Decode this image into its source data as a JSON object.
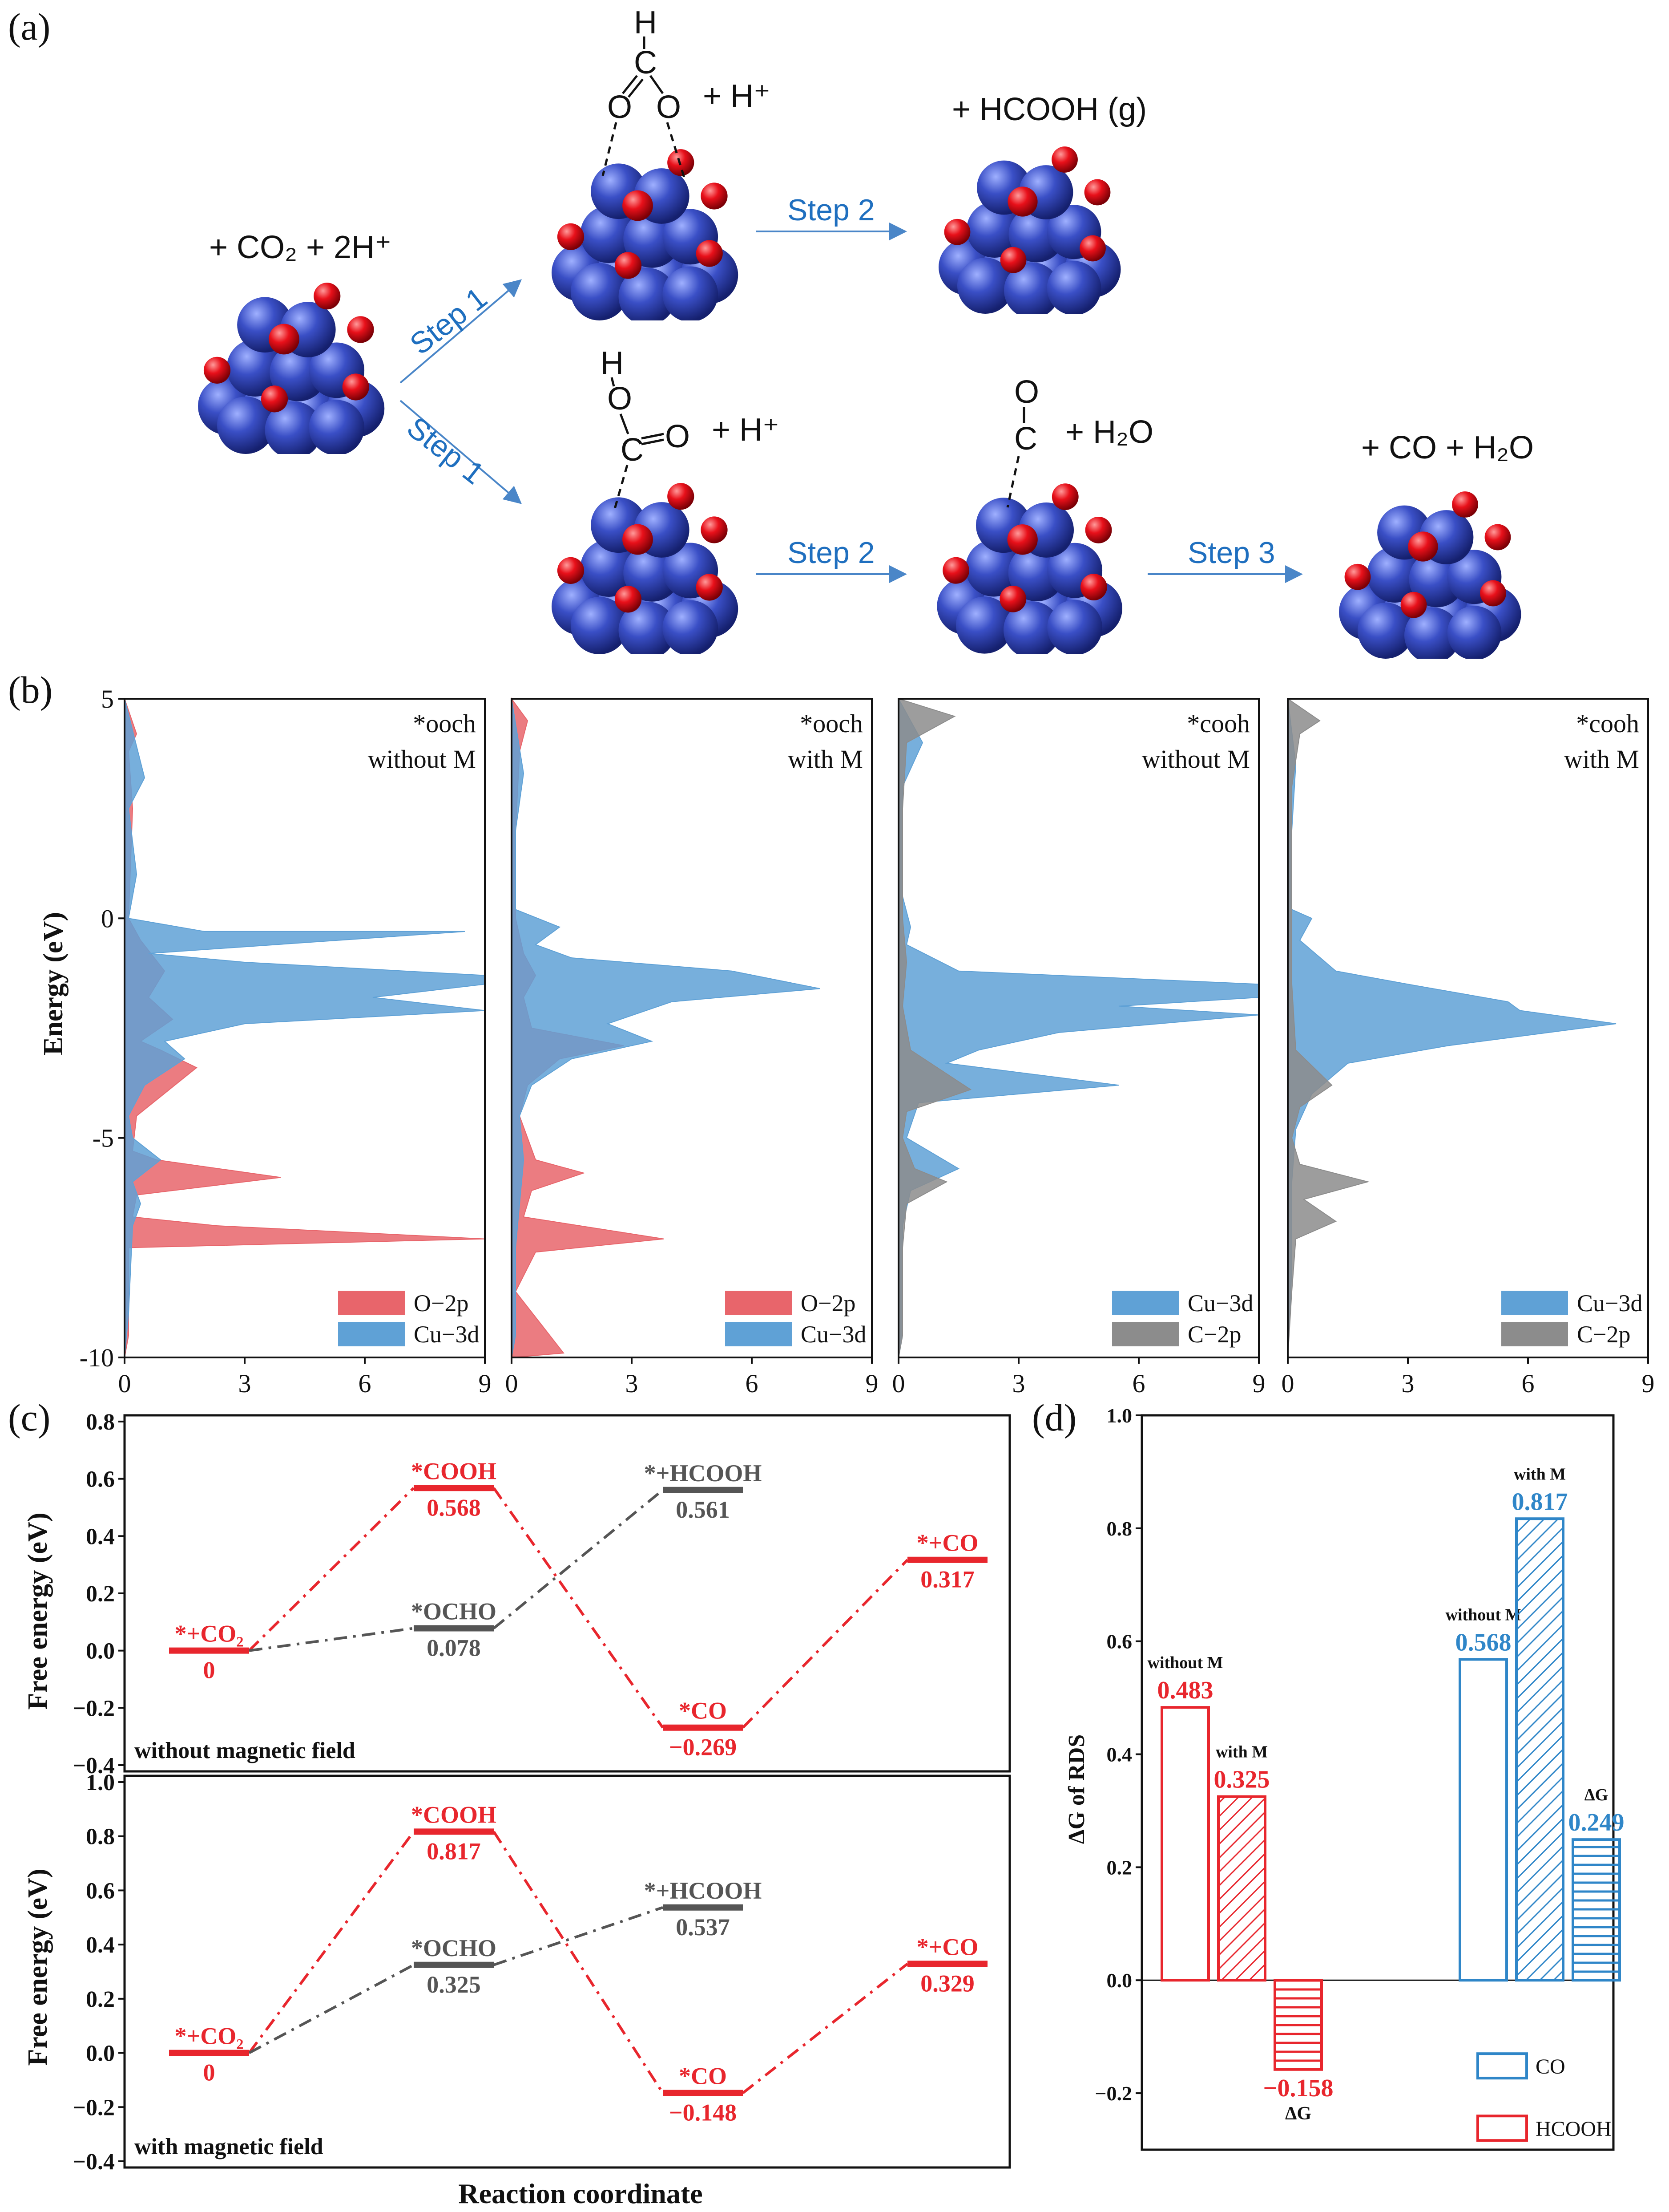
{
  "figure": {
    "panel_labels": [
      "(a)",
      "(b)",
      "(c)",
      "(d)"
    ]
  },
  "panel_a": {
    "initial_label": "+ CO₂ + 2H⁺",
    "top_branch": {
      "step1": "Step 1",
      "intermediate_label": "+ H⁺",
      "step2": "Step 2",
      "product_label": "+ HCOOH (g)",
      "atoms": [
        "H",
        "C",
        "O",
        "O"
      ]
    },
    "bottom_branch": {
      "step1": "Step 1",
      "intermediate1_label": "+ H⁺",
      "step2": "Step 2",
      "intermediate2_label": "+ H₂O",
      "step3": "Step 3",
      "product_label": "+ CO + H₂O",
      "atoms_cooh": [
        "H",
        "O",
        "C",
        "O"
      ],
      "atoms_co": [
        "O",
        "C"
      ]
    },
    "colors": {
      "cu": "#3a4fc6",
      "o": "#e8101a",
      "arrow": "#4a86c8",
      "step_text": "#1f6fbf"
    }
  },
  "chart_data": [
    {
      "type": "area",
      "id": "b1",
      "title": "*ooch without M",
      "title_line1": "*ooch",
      "title_line2": "without M",
      "ylabel": "Energy (eV)",
      "xlim": [
        0,
        9
      ],
      "ylim": [
        -10,
        5
      ],
      "x_ticks": [
        0,
        3,
        6,
        9
      ],
      "y_ticks": [
        5,
        0,
        -5,
        -10
      ],
      "series": [
        {
          "name": "O−2p",
          "color": "#e8656b",
          "points": [
            [
              0,
              5
            ],
            [
              0.3,
              4.2
            ],
            [
              0.1,
              3.8
            ],
            [
              0.2,
              2.5
            ],
            [
              0.1,
              0
            ],
            [
              0.4,
              -0.5
            ],
            [
              1.0,
              -1.2
            ],
            [
              0.6,
              -1.8
            ],
            [
              1.2,
              -2.3
            ],
            [
              0.4,
              -2.8
            ],
            [
              0.9,
              -3.0
            ],
            [
              1.8,
              -3.4
            ],
            [
              0.3,
              -4.5
            ],
            [
              0.2,
              -5.3
            ],
            [
              0.8,
              -5.5
            ],
            [
              3.9,
              -5.9
            ],
            [
              0.3,
              -6.3
            ],
            [
              0.2,
              -6.8
            ],
            [
              2.3,
              -7.0
            ],
            [
              9,
              -7.3
            ],
            [
              0.1,
              -7.5
            ],
            [
              0.1,
              -9.5
            ]
          ]
        },
        {
          "name": "Cu−3d",
          "color": "#5fa1d6",
          "points": [
            [
              0,
              5
            ],
            [
              0.5,
              3.2
            ],
            [
              0.1,
              2.5
            ],
            [
              0.3,
              1.0
            ],
            [
              0.1,
              0
            ],
            [
              2.0,
              -0.3
            ],
            [
              8.5,
              -0.3
            ],
            [
              0.6,
              -0.8
            ],
            [
              3.0,
              -1.0
            ],
            [
              9,
              -1.3
            ],
            [
              9,
              -1.5
            ],
            [
              6.2,
              -1.8
            ],
            [
              9,
              -2.1
            ],
            [
              3.0,
              -2.4
            ],
            [
              1.0,
              -2.8
            ],
            [
              1.5,
              -3.2
            ],
            [
              0.5,
              -3.8
            ],
            [
              0.1,
              -4.5
            ],
            [
              0.2,
              -5.0
            ],
            [
              0.9,
              -5.5
            ],
            [
              0.2,
              -6.0
            ],
            [
              0.4,
              -6.5
            ],
            [
              0.2,
              -7.0
            ],
            [
              0.1,
              -9.0
            ]
          ]
        }
      ]
    },
    {
      "type": "area",
      "id": "b2",
      "title": "*ooch with M",
      "title_line1": "*ooch",
      "title_line2": "with M",
      "xlim": [
        0,
        9
      ],
      "ylim": [
        -10,
        5
      ],
      "x_ticks": [
        0,
        3,
        6,
        9
      ],
      "series": [
        {
          "name": "O−2p",
          "color": "#e8656b",
          "points": [
            [
              0,
              5
            ],
            [
              0.4,
              4.5
            ],
            [
              0.2,
              3.8
            ],
            [
              0.1,
              2.0
            ],
            [
              0.1,
              0
            ],
            [
              0.3,
              -0.8
            ],
            [
              0.6,
              -1.3
            ],
            [
              0.3,
              -1.8
            ],
            [
              0.5,
              -2.5
            ],
            [
              2.8,
              -2.9
            ],
            [
              1.2,
              -3.2
            ],
            [
              0.4,
              -3.8
            ],
            [
              0.2,
              -4.5
            ],
            [
              0.6,
              -5.5
            ],
            [
              1.8,
              -5.8
            ],
            [
              0.5,
              -6.2
            ],
            [
              0.3,
              -6.8
            ],
            [
              3.8,
              -7.3
            ],
            [
              0.6,
              -7.6
            ],
            [
              0.1,
              -8.5
            ],
            [
              1.3,
              -9.9
            ]
          ]
        },
        {
          "name": "Cu−3d",
          "color": "#5fa1d6",
          "points": [
            [
              0,
              5
            ],
            [
              0.3,
              3.3
            ],
            [
              0.1,
              2.0
            ],
            [
              0.1,
              0.2
            ],
            [
              1.2,
              -0.2
            ],
            [
              0.6,
              -0.6
            ],
            [
              1.5,
              -0.9
            ],
            [
              5.5,
              -1.2
            ],
            [
              7.7,
              -1.6
            ],
            [
              4.0,
              -1.9
            ],
            [
              2.4,
              -2.4
            ],
            [
              3.5,
              -2.8
            ],
            [
              1.5,
              -3.2
            ],
            [
              0.5,
              -3.8
            ],
            [
              0.2,
              -4.5
            ],
            [
              0.3,
              -5.5
            ],
            [
              0.2,
              -6.5
            ],
            [
              0.1,
              -7.5
            ],
            [
              0.1,
              -9.5
            ]
          ]
        }
      ]
    },
    {
      "type": "area",
      "id": "b3",
      "title": "*cooh without M",
      "title_line1": "*cooh",
      "title_line2": "without M",
      "xlim": [
        0,
        9
      ],
      "ylim": [
        -10,
        5
      ],
      "x_ticks": [
        0,
        3,
        6,
        9
      ],
      "series": [
        {
          "name": "Cu−3d",
          "color": "#5fa1d6",
          "points": [
            [
              0,
              5
            ],
            [
              0.6,
              4.0
            ],
            [
              0.1,
              3.0
            ],
            [
              0.1,
              0.5
            ],
            [
              0.3,
              -0.2
            ],
            [
              0.2,
              -0.6
            ],
            [
              1.5,
              -1.2
            ],
            [
              9,
              -1.5
            ],
            [
              9,
              -1.8
            ],
            [
              5.5,
              -2.0
            ],
            [
              9,
              -2.2
            ],
            [
              4.0,
              -2.6
            ],
            [
              2.0,
              -3.0
            ],
            [
              1.2,
              -3.3
            ],
            [
              5.5,
              -3.8
            ],
            [
              0.5,
              -4.2
            ],
            [
              0.2,
              -5.0
            ],
            [
              1.5,
              -5.7
            ],
            [
              0.3,
              -6.2
            ],
            [
              0.1,
              -7.0
            ],
            [
              0.1,
              -9.5
            ]
          ]
        },
        {
          "name": "C−2p",
          "color": "#8c8c8c",
          "points": [
            [
              0,
              5
            ],
            [
              1.4,
              4.6
            ],
            [
              0.2,
              4.0
            ],
            [
              0.1,
              2.5
            ],
            [
              0.1,
              0
            ],
            [
              0.2,
              -1.0
            ],
            [
              0.1,
              -2.0
            ],
            [
              0.3,
              -3.0
            ],
            [
              1.8,
              -3.9
            ],
            [
              0.2,
              -4.4
            ],
            [
              0.1,
              -5.0
            ],
            [
              0.4,
              -5.7
            ],
            [
              1.2,
              -6.0
            ],
            [
              0.2,
              -6.5
            ],
            [
              0.1,
              -7.5
            ],
            [
              0.1,
              -9.5
            ]
          ]
        }
      ]
    },
    {
      "type": "area",
      "id": "b4",
      "title": "*cooh with M",
      "title_line1": "*cooh",
      "title_line2": "with M",
      "xlim": [
        0,
        9
      ],
      "ylim": [
        -10,
        5
      ],
      "x_ticks": [
        0,
        3,
        6,
        9
      ],
      "series": [
        {
          "name": "Cu−3d",
          "color": "#5fa1d6",
          "points": [
            [
              0,
              5
            ],
            [
              0.2,
              3.5
            ],
            [
              0.1,
              2.0
            ],
            [
              0.1,
              0.2
            ],
            [
              0.6,
              0.0
            ],
            [
              0.3,
              -0.5
            ],
            [
              1.2,
              -1.2
            ],
            [
              3.0,
              -1.5
            ],
            [
              5.5,
              -1.9
            ],
            [
              5.8,
              -2.1
            ],
            [
              8.2,
              -2.4
            ],
            [
              4.0,
              -2.9
            ],
            [
              1.5,
              -3.3
            ],
            [
              0.6,
              -4.0
            ],
            [
              0.2,
              -4.8
            ],
            [
              0.1,
              -6.0
            ],
            [
              0.1,
              -8.0
            ]
          ]
        },
        {
          "name": "C−2p",
          "color": "#8c8c8c",
          "points": [
            [
              0,
              5
            ],
            [
              0.8,
              4.5
            ],
            [
              0.3,
              4.2
            ],
            [
              0.1,
              3.0
            ],
            [
              0.1,
              0.5
            ],
            [
              0.1,
              -1.5
            ],
            [
              0.2,
              -3.0
            ],
            [
              1.1,
              -3.8
            ],
            [
              0.3,
              -4.3
            ],
            [
              0.1,
              -5.0
            ],
            [
              0.3,
              -5.6
            ],
            [
              2.0,
              -6.0
            ],
            [
              0.4,
              -6.4
            ],
            [
              1.2,
              -6.9
            ],
            [
              0.2,
              -7.3
            ],
            [
              0.1,
              -8.5
            ]
          ]
        }
      ]
    },
    {
      "type": "line",
      "id": "c1",
      "ylabel": "Free energy (eV)",
      "xlabel": "Reaction coordinate",
      "ylim": [
        -0.4,
        0.8
      ],
      "y_ticks": [
        0.8,
        0.6,
        0.4,
        0.2,
        0.0,
        -0.2,
        -0.4
      ],
      "y_tick_labels": [
        "0.8",
        "0.6",
        "0.4",
        "0.2",
        "0.0",
        "−0.2",
        "−0.4"
      ],
      "note": "without magnetic field",
      "states": [
        {
          "name": "*+CO₂",
          "value": 0,
          "value_label": "0",
          "pos": 0,
          "color": "#e8262d"
        },
        {
          "name": "*COOH",
          "value": 0.568,
          "value_label": "0.568",
          "pos": 1,
          "color": "#e8262d"
        },
        {
          "name": "*OCHO",
          "value": 0.078,
          "value_label": "0.078",
          "pos": 1,
          "color": "#555555"
        },
        {
          "name": "*+HCOOH",
          "value": 0.561,
          "value_label": "0.561",
          "pos": 2,
          "color": "#555555"
        },
        {
          "name": "*CO",
          "value": -0.269,
          "value_label": "−0.269",
          "pos": 2,
          "color": "#e8262d"
        },
        {
          "name": "*+CO",
          "value": 0.317,
          "value_label": "0.317",
          "pos": 3,
          "color": "#e8262d"
        }
      ],
      "paths": {
        "red": [
          "*+CO₂",
          "*COOH",
          "*CO",
          "*+CO"
        ],
        "gray": [
          "*+CO₂",
          "*OCHO",
          "*+HCOOH"
        ]
      }
    },
    {
      "type": "line",
      "id": "c2",
      "ylabel": "Free energy (eV)",
      "ylim": [
        -0.4,
        1.0
      ],
      "y_ticks": [
        1.0,
        0.8,
        0.6,
        0.4,
        0.2,
        0.0,
        -0.2,
        -0.4
      ],
      "y_tick_labels": [
        "1.0",
        "0.8",
        "0.6",
        "0.4",
        "0.2",
        "0.0",
        "−0.2",
        "−0.4"
      ],
      "note": "with magnetic field",
      "states": [
        {
          "name": "*+CO₂",
          "value": 0,
          "value_label": "0",
          "pos": 0,
          "color": "#e8262d"
        },
        {
          "name": "*COOH",
          "value": 0.817,
          "value_label": "0.817",
          "pos": 1,
          "color": "#e8262d"
        },
        {
          "name": "*OCHO",
          "value": 0.325,
          "value_label": "0.325",
          "pos": 1,
          "color": "#555555"
        },
        {
          "name": "*+HCOOH",
          "value": 0.537,
          "value_label": "0.537",
          "pos": 2,
          "color": "#555555"
        },
        {
          "name": "*CO",
          "value": -0.148,
          "value_label": "−0.148",
          "pos": 2,
          "color": "#e8262d"
        },
        {
          "name": "*+CO",
          "value": 0.329,
          "value_label": "0.329",
          "pos": 3,
          "color": "#e8262d"
        }
      ],
      "paths": {
        "red": [
          "*+CO₂",
          "*COOH",
          "*CO",
          "*+CO"
        ],
        "gray": [
          "*+CO₂",
          "*OCHO",
          "*+HCOOH"
        ]
      }
    },
    {
      "type": "bar",
      "id": "d",
      "ylabel": "ΔG of  RDS",
      "ylim": [
        -0.3,
        1.0
      ],
      "y_ticks": [
        1.0,
        0.8,
        0.6,
        0.4,
        0.2,
        0.0,
        -0.2
      ],
      "y_tick_labels": [
        "1.0",
        "0.8",
        "0.6",
        "0.4",
        "0.2",
        "0.0",
        "−0.2"
      ],
      "groups": [
        {
          "name": "HCOOH",
          "color": "#e8262d",
          "bars": [
            {
              "label": "without M",
              "value": 0.483,
              "value_label": "0.483",
              "pattern": "none"
            },
            {
              "label": "with M",
              "value": 0.325,
              "value_label": "0.325",
              "pattern": "diag"
            },
            {
              "label": "ΔG",
              "value": -0.158,
              "value_label": "−0.158",
              "pattern": "horiz"
            }
          ]
        },
        {
          "name": "CO",
          "color": "#2f86c8",
          "bars": [
            {
              "label": "without M",
              "value": 0.568,
              "value_label": "0.568",
              "pattern": "none"
            },
            {
              "label": "with M",
              "value": 0.817,
              "value_label": "0.817",
              "pattern": "diag"
            },
            {
              "label": "ΔG",
              "value": 0.249,
              "value_label": "0.249",
              "pattern": "horiz"
            }
          ]
        }
      ],
      "legend": [
        "CO",
        "HCOOH"
      ],
      "legend_position": "bottom-right"
    }
  ]
}
